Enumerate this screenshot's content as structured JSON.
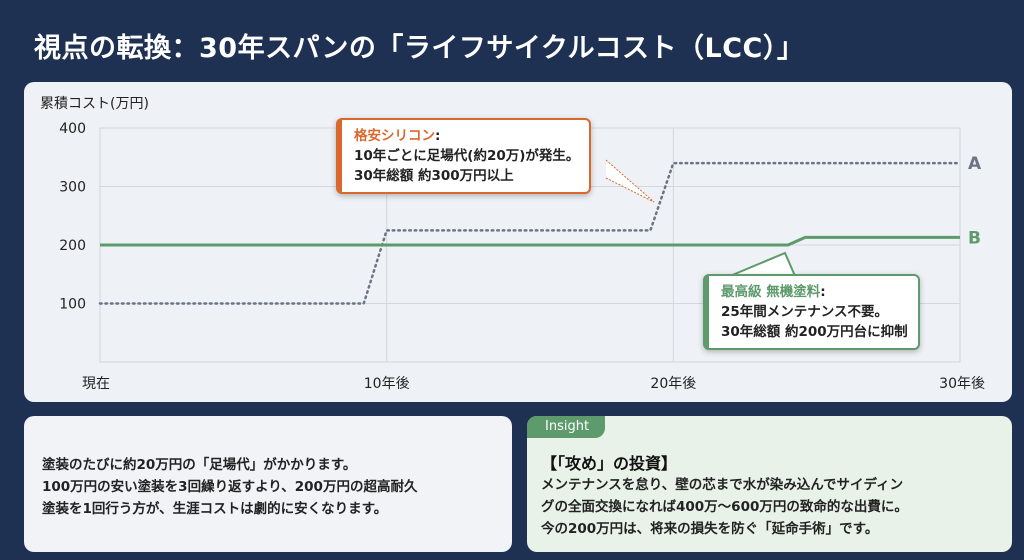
{
  "title": "視点の転換：30年スパンの「ライフサイクルコスト（LCC）」",
  "chart_data": {
    "type": "line",
    "ylabel": "累積コスト(万円)",
    "ylim": [
      0,
      400
    ],
    "yticks": [
      100,
      200,
      300,
      400
    ],
    "xlim": [
      0,
      30
    ],
    "xticks": [
      {
        "x": 0,
        "label": "現在"
      },
      {
        "x": 10,
        "label": "10年後"
      },
      {
        "x": 20,
        "label": "20年後"
      },
      {
        "x": 30,
        "label": "30年後"
      }
    ],
    "grid": true,
    "series": [
      {
        "name": "A",
        "color": "#6b7585",
        "style": "dotted",
        "points": [
          [
            0,
            100
          ],
          [
            9.2,
            100
          ],
          [
            10,
            225
          ],
          [
            19.2,
            225
          ],
          [
            20,
            340
          ],
          [
            30,
            340
          ]
        ]
      },
      {
        "name": "B",
        "color": "#5d9a6c",
        "style": "solid",
        "points": [
          [
            0,
            200
          ],
          [
            24,
            200
          ],
          [
            24.6,
            213
          ],
          [
            30,
            213
          ]
        ]
      }
    ],
    "annotations": [
      {
        "heading": "格安シリコン",
        "lines": [
          "10年ごとに足場代(約20万)が発生。",
          "30年総額 約300万円以上"
        ],
        "color": "#d9682e"
      },
      {
        "heading": "最高級 無機塗料",
        "lines": [
          "25年間メンテナンス不要。",
          "30年総額 約200万円台に抑制"
        ],
        "color": "#5d9a6c"
      }
    ]
  },
  "left_panel": {
    "lines": [
      "塗装のたびに約20万円の「足場代」がかかります。",
      "100万円の安い塗装を3回繰り返すより、200万円の超高耐久",
      "塗装を1回行う方が、生涯コストは劇的に安くなります。"
    ]
  },
  "right_panel": {
    "tab": "Insight",
    "heading": "【「攻め」の投資】",
    "lines": [
      "メンテナンスを怠り、壁の芯まで水が染み込んでサイディン",
      "グの全面交換になれば400万～600万円の致命的な出費に。",
      "今の200万円は、将来の損失を防ぐ「延命手術」です。"
    ]
  }
}
